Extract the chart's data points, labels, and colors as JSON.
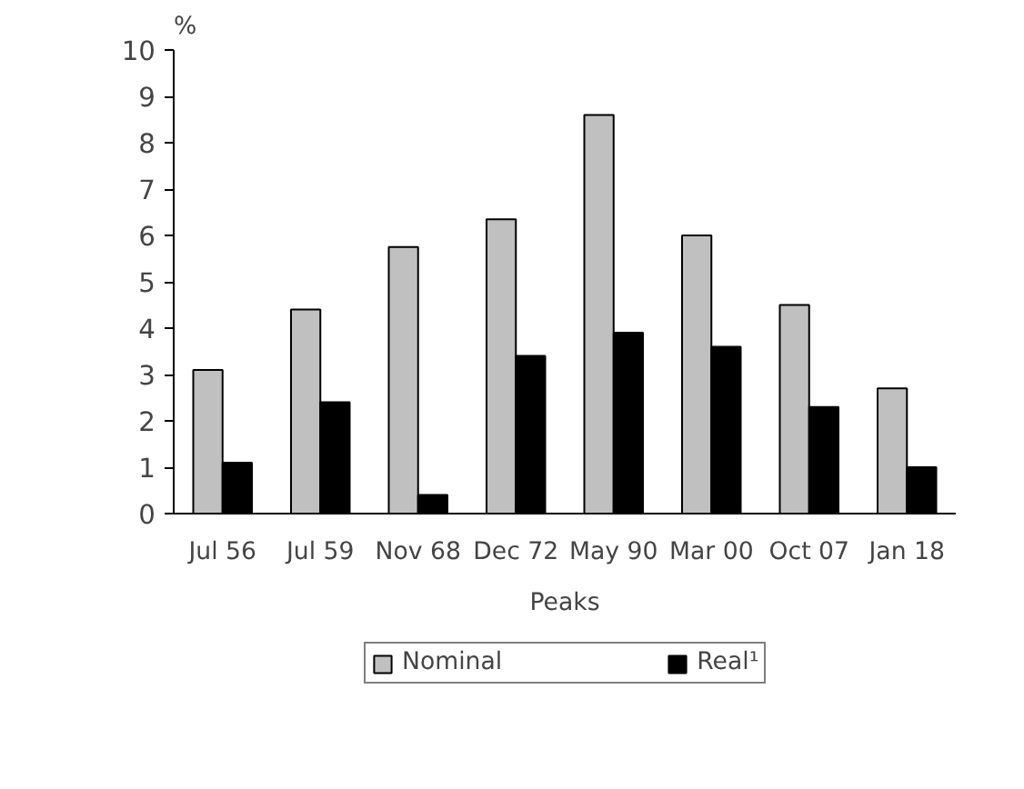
{
  "chart_data": {
    "type": "bar",
    "ylabel": "%",
    "xlabel": "Peaks",
    "categories": [
      "Jul 56",
      "Jul 59",
      "Nov 68",
      "Dec 72",
      "May 90",
      "Mar 00",
      "Oct 07",
      "Jan 18"
    ],
    "series": [
      {
        "name": "Nominal",
        "color": "#c0c0c0",
        "values": [
          3.1,
          4.4,
          5.75,
          6.35,
          8.6,
          6.0,
          4.5,
          2.7
        ]
      },
      {
        "name": "Real¹",
        "color": "#000000",
        "values": [
          1.1,
          2.4,
          0.4,
          3.4,
          3.9,
          3.6,
          2.3,
          1.0
        ]
      }
    ],
    "ylim": [
      0,
      10
    ],
    "yticks": [
      0,
      1,
      2,
      3,
      4,
      5,
      6,
      7,
      8,
      9,
      10
    ],
    "grid": false,
    "legend": "bottom"
  }
}
